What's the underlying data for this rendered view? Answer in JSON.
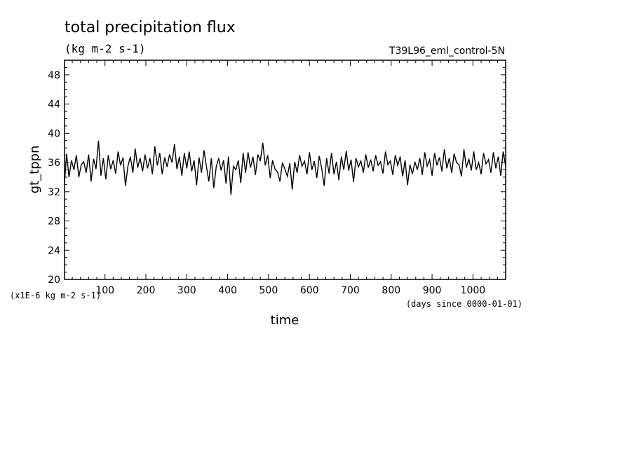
{
  "chart_data": {
    "type": "line",
    "title": "total precipitation flux",
    "subtitle": "(kg m-2 s-1)",
    "run_label": "T39L96_eml_control-5N",
    "ylabel": "gt_tppn",
    "xlabel": "time",
    "y_scale_label": "(x1E-6 kg m-2 s-1)",
    "x_unit_label": "(days since 0000-01-01)",
    "xlim": [
      1,
      1080
    ],
    "ylim": [
      20,
      50
    ],
    "x_ticks": [
      100,
      200,
      300,
      400,
      500,
      600,
      700,
      800,
      900,
      1000
    ],
    "x_tick_labels": [
      "100",
      "200",
      "300",
      "400",
      "500",
      "600",
      "700",
      "800",
      "900",
      "1000"
    ],
    "y_ticks": [
      20,
      24,
      28,
      32,
      36,
      40,
      44,
      48
    ],
    "y_tick_labels": [
      "20",
      "24",
      "28",
      "32",
      "36",
      "40",
      "44",
      "48"
    ],
    "line_color": "#000000",
    "series": [
      {
        "x": [
          1,
          6,
          12,
          18,
          24,
          30,
          36,
          42,
          48,
          54,
          60,
          66,
          72,
          78,
          84,
          90,
          96,
          102,
          108,
          114,
          120,
          126,
          132,
          138,
          144,
          150,
          156,
          162,
          168,
          174,
          180,
          186,
          192,
          198,
          204,
          210,
          216,
          222,
          228,
          234,
          240,
          246,
          252,
          258,
          264,
          270,
          276,
          282,
          288,
          294,
          300,
          306,
          312,
          318,
          324,
          330,
          336,
          342,
          348,
          354,
          360,
          366,
          372,
          378,
          384,
          390,
          396,
          402,
          408,
          414,
          420,
          426,
          432,
          438,
          444,
          450,
          456,
          462,
          468,
          474,
          480,
          486,
          492,
          498,
          504,
          510,
          516,
          522,
          528,
          534,
          540,
          546,
          552,
          558,
          564,
          570,
          576,
          582,
          588,
          594,
          600,
          606,
          612,
          618,
          624,
          630,
          636,
          642,
          648,
          654,
          660,
          666,
          672,
          678,
          684,
          690,
          696,
          702,
          708,
          714,
          720,
          726,
          732,
          738,
          744,
          750,
          756,
          762,
          768,
          774,
          780,
          786,
          792,
          798,
          804,
          810,
          816,
          822,
          828,
          834,
          840,
          846,
          852,
          858,
          864,
          870,
          876,
          882,
          888,
          894,
          900,
          906,
          912,
          918,
          924,
          930,
          936,
          942,
          948,
          954,
          960,
          966,
          972,
          978,
          984,
          990,
          996,
          1002,
          1008,
          1014,
          1020,
          1026,
          1032,
          1038,
          1044,
          1050,
          1056,
          1062,
          1068,
          1074,
          1080
        ],
        "values": [
          33.2,
          37.2,
          34.0,
          36.3,
          35.0,
          37.0,
          34.0,
          35.7,
          36.1,
          34.6,
          37.1,
          33.4,
          36.5,
          35.1,
          39.0,
          34.2,
          36.6,
          33.7,
          37.0,
          35.1,
          36.3,
          34.5,
          37.5,
          35.6,
          36.7,
          32.8,
          35.5,
          36.8,
          34.6,
          37.9,
          35.3,
          36.6,
          34.8,
          37.1,
          35.2,
          36.6,
          34.4,
          38.2,
          35.6,
          37.3,
          34.4,
          36.7,
          35.4,
          37.1,
          36.0,
          38.5,
          35.1,
          36.8,
          34.2,
          37.3,
          35.2,
          37.5,
          34.8,
          36.3,
          32.9,
          36.7,
          34.6,
          37.7,
          35.5,
          33.4,
          36.6,
          32.5,
          35.4,
          36.6,
          34.9,
          36.3,
          33.1,
          36.8,
          31.6,
          35.5,
          35.0,
          36.3,
          33.2,
          37.3,
          34.6,
          37.4,
          35.3,
          36.8,
          34.3,
          37.1,
          36.2,
          38.7,
          35.6,
          37.0,
          33.9,
          36.3,
          35.1,
          34.7,
          33.4,
          36.0,
          35.1,
          34.1,
          35.9,
          32.3,
          36.1,
          34.6,
          37.0,
          35.5,
          36.2,
          34.4,
          37.4,
          35.0,
          36.2,
          33.9,
          36.9,
          35.2,
          32.8,
          36.6,
          34.5,
          37.3,
          34.4,
          36.1,
          33.6,
          36.8,
          35.0,
          37.6,
          34.9,
          36.4,
          33.3,
          36.6,
          35.4,
          36.2,
          34.6,
          37.1,
          35.3,
          36.4,
          34.8,
          37.0,
          35.6,
          36.1,
          34.5,
          37.5,
          35.7,
          36.2,
          34.3,
          37.0,
          35.6,
          36.8,
          34.1,
          36.3,
          32.9,
          35.7,
          34.4,
          36.1,
          35.0,
          36.6,
          34.3,
          37.4,
          35.5,
          36.4,
          34.2,
          37.3,
          35.6,
          36.7,
          34.8,
          37.8,
          35.2,
          36.6,
          34.6,
          37.2,
          36.0,
          35.7,
          34.1,
          37.8,
          35.3,
          36.5,
          34.9,
          37.5,
          35.0,
          36.0,
          34.4,
          37.3,
          35.8,
          36.4,
          34.6,
          37.4,
          35.2,
          36.8,
          34.2,
          37.5,
          35.5
        ]
      }
    ]
  }
}
